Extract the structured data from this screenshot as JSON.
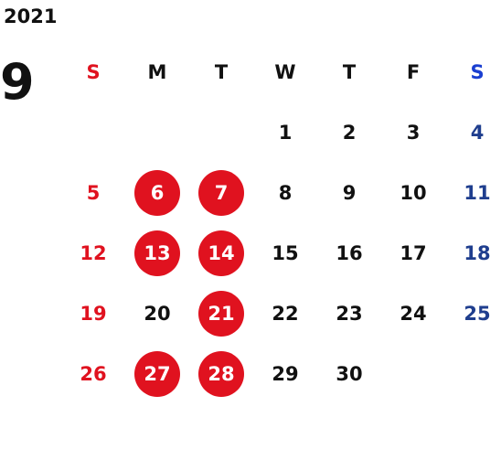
{
  "year": "2021",
  "month": "9",
  "weekdays": [
    "S",
    "M",
    "T",
    "W",
    "T",
    "F",
    "S"
  ],
  "first_weekday_index": 3,
  "days_in_month": 30,
  "highlighted_days": [
    6,
    7,
    13,
    14,
    21,
    27,
    28
  ],
  "colors": {
    "sunday": "#e0121f",
    "saturday": "#1f3e8e",
    "saturday_header": "#1a3fd1",
    "weekday": "#111111",
    "highlight_bg": "#e0121f",
    "highlight_text": "#ffffff"
  }
}
